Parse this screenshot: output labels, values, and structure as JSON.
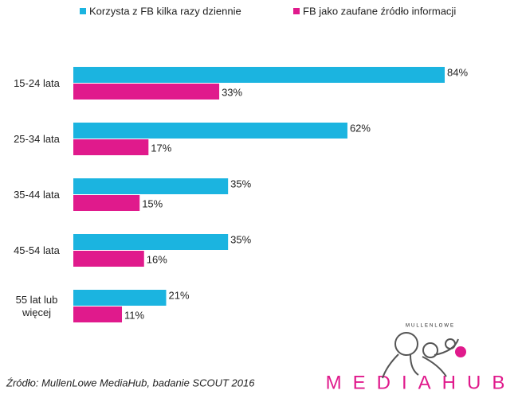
{
  "chart_data": {
    "type": "bar",
    "orientation": "horizontal",
    "categories": [
      "15-24 lata",
      "25-34 lata",
      "35-44 lata",
      "45-54 lata",
      "55 lat lub więcej"
    ],
    "series": [
      {
        "name": "Korzysta z FB kilka razy dziennie",
        "color": "#1bb4e0",
        "values": [
          84,
          62,
          35,
          35,
          21
        ],
        "value_labels": [
          "84%",
          "62%",
          "35%",
          "35%",
          "21%"
        ]
      },
      {
        "name": "FB jako zaufane źródło informacji",
        "color": "#e01a8c",
        "values": [
          33,
          17,
          15,
          16,
          11
        ],
        "value_labels": [
          "33%",
          "17%",
          "15%",
          "16%",
          "11%"
        ]
      }
    ],
    "legend": "top",
    "source": "Źródło: MullenLowe MediaHub, badanie SCOUT 2016",
    "logo_top": "MULLENLOWE",
    "logo": "MEDIAHUB"
  }
}
